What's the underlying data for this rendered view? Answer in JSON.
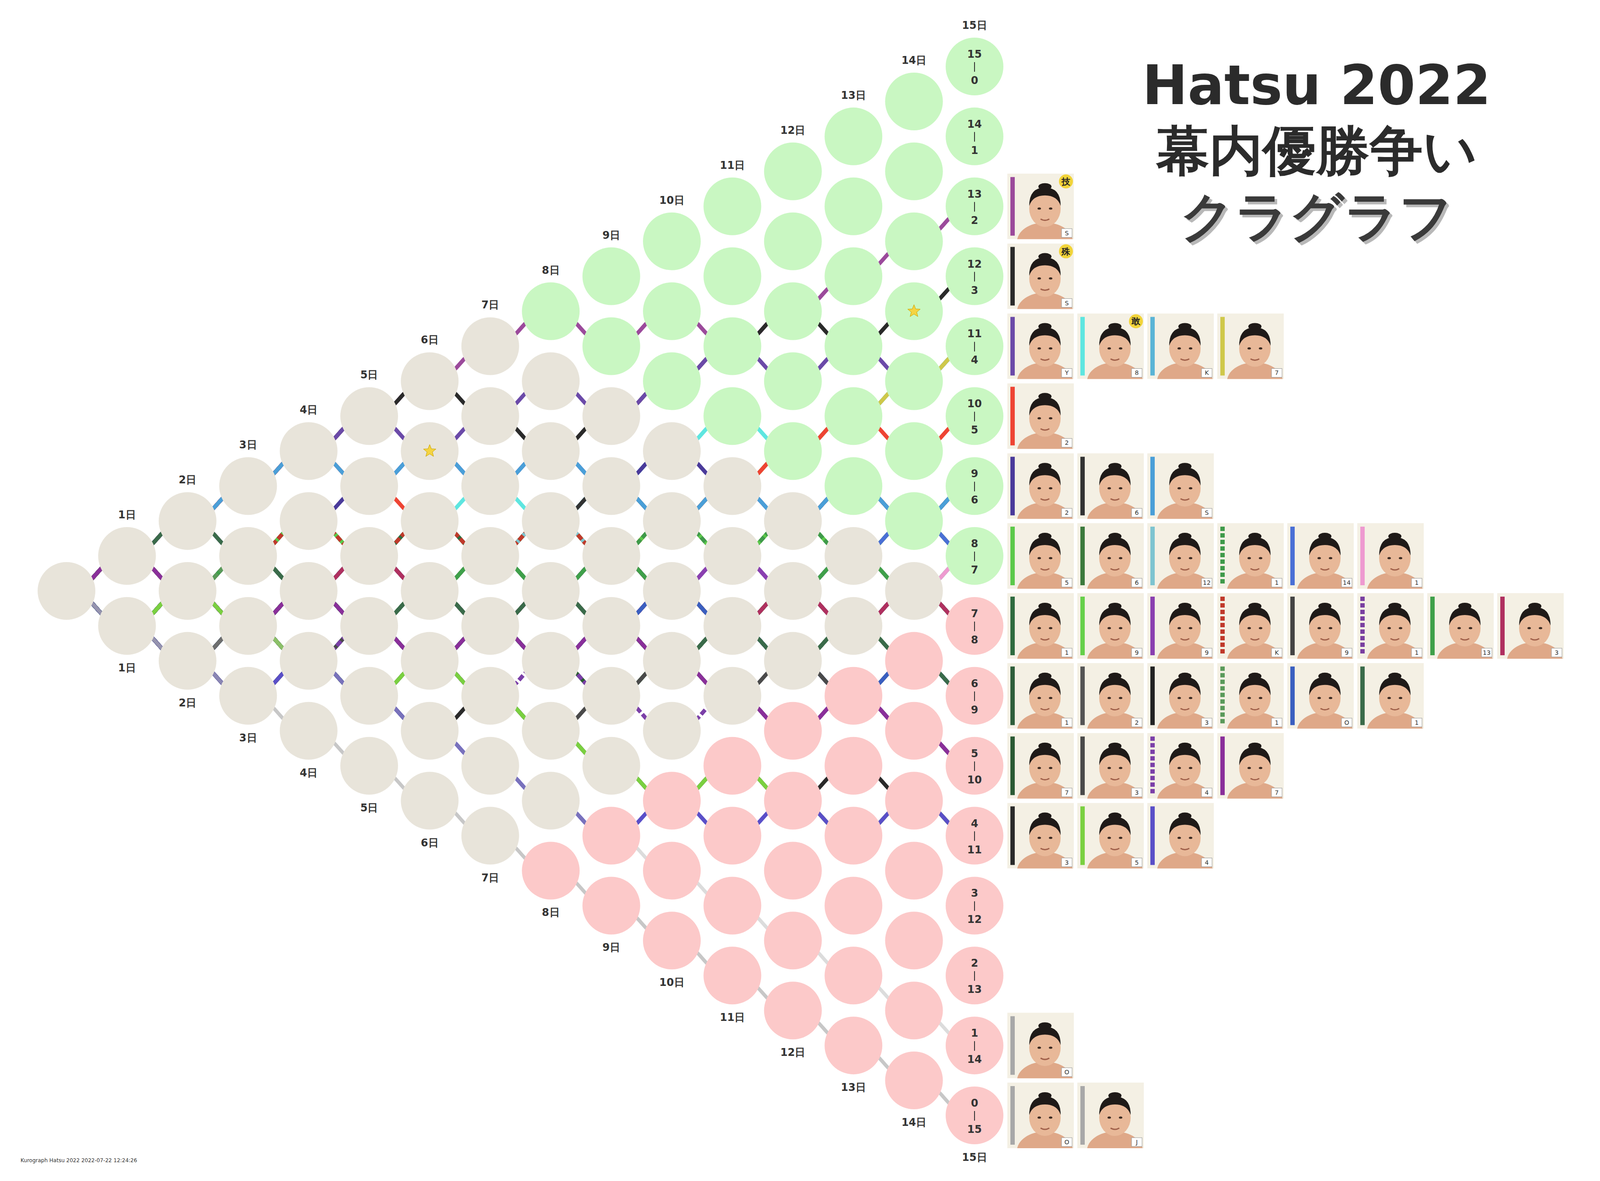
{
  "chart_data": {
    "type": "kurograph",
    "title": "Hatsu 2022",
    "subtitle": [
      "幕内優勝争い",
      "クラグラフ"
    ],
    "annotations": [
      "Kurograph Hatsu 2022 2022-07-22 12:24:26"
    ],
    "x": [
      0,
      1,
      2,
      3,
      4,
      5,
      6,
      7,
      8,
      9,
      10,
      11,
      12,
      13,
      14,
      15
    ],
    "xlim": [
      0,
      15
    ],
    "ylim": [
      -15,
      15
    ],
    "tick_labels": false,
    "day_labels": [
      "1日",
      "2日",
      "3日",
      "4日",
      "5日",
      "6日",
      "7日",
      "8日",
      "9日",
      "10日",
      "11日",
      "12日",
      "13日",
      "14日",
      "15日"
    ],
    "records": [
      [
        15,
        0
      ],
      [
        14,
        1
      ],
      [
        13,
        2
      ],
      [
        12,
        3
      ],
      [
        11,
        4
      ],
      [
        10,
        5
      ],
      [
        9,
        6
      ],
      [
        8,
        7
      ],
      [
        7,
        8
      ],
      [
        6,
        9
      ],
      [
        5,
        10
      ],
      [
        4,
        11
      ],
      [
        3,
        12
      ],
      [
        2,
        13
      ],
      [
        1,
        14
      ],
      [
        0,
        15
      ]
    ],
    "series": [
      {
        "color": "#9b4a9b",
        "values": [
          0,
          1,
          2,
          3,
          4,
          5,
          6,
          7,
          8,
          7,
          8,
          7,
          8,
          9,
          10,
          11
        ],
        "rank": "S",
        "prize": "技"
      },
      {
        "color": "#2a2a2a",
        "values": [
          0,
          1,
          2,
          3,
          4,
          5,
          6,
          5,
          4,
          5,
          6,
          7,
          8,
          7,
          8,
          9
        ],
        "rank": "S",
        "prize": "殊"
      },
      {
        "color": "#6b4aa8",
        "values": [
          0,
          1,
          2,
          3,
          4,
          5,
          4,
          5,
          6,
          5,
          6,
          7,
          6,
          7,
          6,
          7
        ],
        "rank": "Y"
      },
      {
        "color": "#5ee6e0",
        "values": [
          0,
          1,
          0,
          1,
          2,
          1,
          2,
          3,
          2,
          3,
          4,
          5,
          4,
          5,
          6,
          7
        ],
        "rank": "8",
        "prize": "敢"
      },
      {
        "color": "#5ab4d6",
        "values": [
          0,
          -1,
          0,
          1,
          0,
          1,
          0,
          1,
          2,
          3,
          2,
          3,
          4,
          5,
          6,
          7
        ],
        "rank": "K"
      },
      {
        "color": "#cfc84a",
        "values": [
          0,
          1,
          0,
          -1,
          0,
          1,
          0,
          1,
          2,
          1,
          2,
          3,
          4,
          5,
          6,
          7
        ],
        "rank": "7"
      },
      {
        "color": "#ee4433",
        "values": [
          0,
          1,
          2,
          3,
          4,
          3,
          2,
          1,
          2,
          1,
          2,
          3,
          4,
          5,
          4,
          5
        ],
        "rank": "2"
      },
      {
        "color": "#4a3a9a",
        "values": [
          0,
          1,
          0,
          1,
          2,
          3,
          4,
          3,
          4,
          3,
          4,
          3,
          2,
          3,
          2,
          3
        ],
        "rank": "2"
      },
      {
        "color": "#333333",
        "values": [
          0,
          -1,
          0,
          -1,
          0,
          1,
          0,
          1,
          2,
          3,
          2,
          1,
          2,
          3,
          2,
          3
        ],
        "rank": "6"
      },
      {
        "color": "#4a9fd8",
        "values": [
          0,
          1,
          2,
          3,
          4,
          3,
          4,
          3,
          4,
          3,
          2,
          3,
          2,
          3,
          2,
          3
        ],
        "rank": "S"
      },
      {
        "color": "#5cc94a",
        "values": [
          0,
          1,
          2,
          1,
          2,
          1,
          2,
          1,
          0,
          1,
          2,
          1,
          2,
          1,
          0,
          1
        ],
        "rank": "5"
      },
      {
        "color": "#3c7a3c",
        "values": [
          0,
          -1,
          0,
          1,
          0,
          1,
          0,
          1,
          0,
          1,
          0,
          1,
          0,
          1,
          2,
          1
        ],
        "rank": "6"
      },
      {
        "color": "#7ec4d0",
        "values": [
          0,
          1,
          0,
          -1,
          0,
          1,
          2,
          1,
          2,
          1,
          0,
          1,
          0,
          1,
          0,
          1
        ],
        "rank": "12"
      },
      {
        "color": "#3f9a4a",
        "values": [
          0,
          -1,
          -2,
          -1,
          -2,
          -1,
          0,
          1,
          2,
          1,
          2,
          1,
          2,
          1,
          2,
          1
        ],
        "line_style": "dashed",
        "rank": "1"
      },
      {
        "color": "#4a6fd6",
        "values": [
          0,
          -1,
          0,
          -1,
          -2,
          -1,
          -2,
          -1,
          -2,
          -1,
          0,
          1,
          0,
          1,
          2,
          1
        ],
        "rank": "14"
      },
      {
        "color": "#ee9ad0",
        "values": [
          0,
          1,
          0,
          1,
          0,
          -1,
          0,
          -1,
          0,
          -1,
          0,
          1,
          0,
          1,
          0,
          1
        ],
        "rank": "1"
      },
      {
        "color": "#2f6b3f",
        "values": [
          0,
          1,
          0,
          1,
          0,
          1,
          2,
          1,
          0,
          1,
          0,
          -1,
          0,
          -1,
          0,
          -1
        ],
        "rank": "1"
      },
      {
        "color": "#66d04a",
        "values": [
          0,
          -1,
          -2,
          -1,
          0,
          -1,
          -2,
          -1,
          -2,
          -3,
          -2,
          -1,
          -2,
          -1,
          0,
          -1
        ],
        "rank": "9"
      },
      {
        "color": "#8a3fb0",
        "values": [
          0,
          1,
          2,
          1,
          0,
          1,
          0,
          -1,
          0,
          1,
          0,
          1,
          0,
          -1,
          0,
          -1
        ],
        "rank": "9"
      },
      {
        "color": "#c0392b",
        "values": [
          0,
          1,
          0,
          1,
          2,
          1,
          2,
          1,
          2,
          1,
          0,
          -1,
          0,
          -1,
          0,
          -1
        ],
        "line_style": "dashed",
        "rank": "K"
      },
      {
        "color": "#444444",
        "values": [
          0,
          -1,
          0,
          -1,
          0,
          -1,
          0,
          -1,
          0,
          -1,
          0,
          -1,
          0,
          -1,
          0,
          -1
        ],
        "rank": "9"
      },
      {
        "color": "#7a3fa0",
        "values": [
          0,
          -1,
          -2,
          -1,
          -2,
          -1,
          -2,
          -3,
          -2,
          -1,
          0,
          -1,
          -2,
          -1,
          0,
          -1
        ],
        "line_style": "dashed",
        "rank": "1"
      },
      {
        "color": "#3fa04a",
        "values": [
          0,
          -1,
          0,
          1,
          0,
          -1,
          0,
          1,
          0,
          1,
          0,
          -1,
          0,
          1,
          0,
          -1
        ],
        "rank": "13"
      },
      {
        "color": "#b03060",
        "values": [
          0,
          1,
          0,
          -1,
          0,
          1,
          0,
          -1,
          0,
          -1,
          0,
          -1,
          0,
          -1,
          0,
          -1
        ],
        "rank": "3"
      },
      {
        "color": "#2e5e3a",
        "values": [
          0,
          -1,
          0,
          -1,
          -2,
          -1,
          0,
          -1,
          -2,
          -1,
          -2,
          -1,
          -2,
          -1,
          -2,
          -3
        ],
        "rank": "1"
      },
      {
        "color": "#555555",
        "values": [
          0,
          1,
          0,
          -1,
          0,
          -1,
          -2,
          -1,
          0,
          -1,
          -2,
          -1,
          -2,
          -1,
          -2,
          -3
        ],
        "rank": "2"
      },
      {
        "color": "#222222",
        "values": [
          0,
          -1,
          -2,
          -3,
          -2,
          -3,
          -2,
          -1,
          -2,
          -1,
          -2,
          -1,
          -2,
          -3,
          -2,
          -3
        ],
        "rank": "3"
      },
      {
        "color": "#5a9a5a",
        "values": [
          0,
          1,
          0,
          1,
          0,
          -1,
          0,
          -1,
          0,
          -1,
          -2,
          -1,
          -2,
          -1,
          -2,
          -3
        ],
        "line_style": "dashed",
        "rank": "1"
      },
      {
        "color": "#3a5fc0",
        "values": [
          0,
          -1,
          -2,
          -1,
          0,
          -1,
          -2,
          -1,
          -2,
          -1,
          0,
          -1,
          -2,
          -3,
          -2,
          -3
        ],
        "rank": "O"
      },
      {
        "color": "#3a6b4a",
        "values": [
          0,
          1,
          2,
          1,
          0,
          -1,
          0,
          -1,
          0,
          -1,
          -2,
          -1,
          -2,
          -1,
          -2,
          -3
        ],
        "rank": "1"
      },
      {
        "color": "#2b5a34",
        "values": [
          0,
          -1,
          0,
          -1,
          0,
          -1,
          -2,
          -1,
          -2,
          -3,
          -2,
          -3,
          -4,
          -3,
          -4,
          -5
        ],
        "rank": "7"
      },
      {
        "color": "#4a4a4a",
        "values": [
          0,
          -1,
          -2,
          -1,
          -2,
          -1,
          -2,
          -3,
          -4,
          -3,
          -2,
          -3,
          -2,
          -3,
          -4,
          -5
        ],
        "rank": "3"
      },
      {
        "color": "#7b3fa8",
        "values": [
          0,
          -1,
          0,
          -1,
          -2,
          -1,
          -2,
          -3,
          -2,
          -3,
          -4,
          -3,
          -4,
          -3,
          -4,
          -5
        ],
        "line_style": "dashed",
        "rank": "4"
      },
      {
        "color": "#8a2f9a",
        "values": [
          0,
          1,
          0,
          -1,
          0,
          -1,
          -2,
          -1,
          -2,
          -1,
          -2,
          -3,
          -4,
          -3,
          -4,
          -5
        ],
        "rank": "7"
      },
      {
        "color": "#2a2a2a",
        "values": [
          0,
          -1,
          -2,
          -3,
          -2,
          -3,
          -4,
          -3,
          -4,
          -5,
          -6,
          -5,
          -6,
          -5,
          -6,
          -7
        ],
        "rank": "3"
      },
      {
        "color": "#7ad040",
        "values": [
          0,
          -1,
          0,
          -1,
          -2,
          -3,
          -2,
          -3,
          -4,
          -5,
          -6,
          -5,
          -6,
          -7,
          -6,
          -7
        ],
        "rank": "5"
      },
      {
        "color": "#5a4fc8",
        "values": [
          0,
          -1,
          -2,
          -3,
          -2,
          -3,
          -4,
          -5,
          -6,
          -7,
          -6,
          -7,
          -6,
          -7,
          -6,
          -7
        ],
        "rank": "4"
      },
      {
        "color": "#a8a8a8",
        "values": [
          0,
          -1,
          -2,
          -1,
          -2,
          -3,
          -4,
          -5,
          -6,
          -7,
          -8,
          -9,
          -10,
          -11,
          -12,
          -13
        ],
        "line_style": "faint",
        "rank": "O"
      },
      {
        "color": "#a8a8a8",
        "values": [
          0,
          -1,
          -2,
          -3,
          -4,
          -5,
          -6,
          -7,
          -8,
          -9,
          -10,
          -11,
          -12,
          -13,
          -14,
          -15
        ],
        "line_style": "faint",
        "rank": "O"
      },
      {
        "color": "#a8a8a8",
        "values": [
          0,
          -1,
          -2,
          -3,
          -4,
          -5,
          -6,
          -7,
          -8,
          -9,
          -10,
          -11,
          -12,
          -13,
          -14,
          -15
        ],
        "line_style": "faint",
        "rank": "J"
      }
    ],
    "stars": [
      {
        "series": 1,
        "day": 14
      },
      {
        "series": 9,
        "day": 6
      }
    ]
  }
}
